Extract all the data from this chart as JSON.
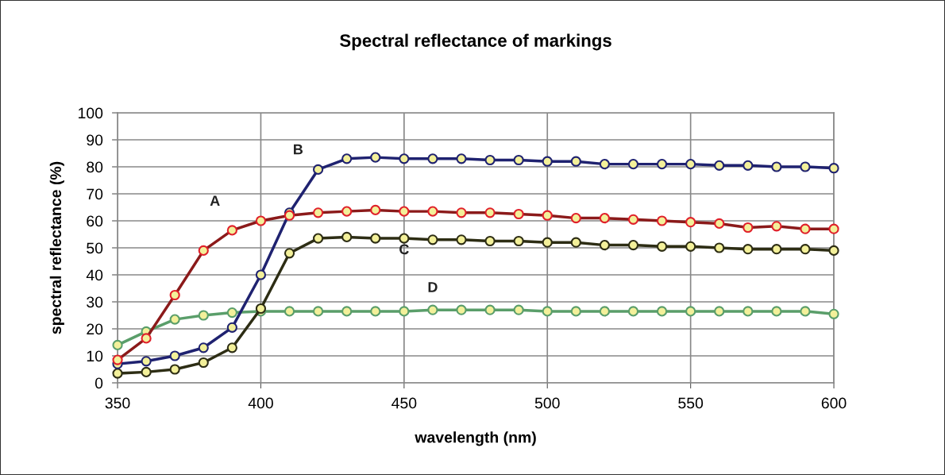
{
  "chart_data": {
    "type": "line",
    "title": "Spectral reflectance of markings",
    "xlabel": "wavelength (nm)",
    "ylabel": "spectral reflectance (%)",
    "x": [
      350,
      360,
      370,
      380,
      390,
      400,
      410,
      420,
      430,
      440,
      450,
      460,
      470,
      480,
      490,
      500,
      510,
      520,
      530,
      540,
      550,
      560,
      570,
      580,
      590,
      600
    ],
    "series": [
      {
        "name": "A",
        "color": "#8b1a1a",
        "values": [
          8.5,
          16.5,
          32.5,
          49,
          56.5,
          60,
          62,
          63,
          63.5,
          64,
          63.5,
          63.5,
          63,
          63,
          62.5,
          62,
          61,
          61,
          60.5,
          60,
          59.5,
          59,
          57.5,
          58,
          57,
          57
        ]
      },
      {
        "name": "B",
        "color": "#1f2270",
        "values": [
          7,
          8,
          10,
          13,
          20.5,
          40,
          63,
          79,
          83,
          83.5,
          83,
          83,
          83,
          82.5,
          82.5,
          82,
          82,
          81,
          81,
          81,
          81,
          80.5,
          80.5,
          80,
          80,
          79.5
        ]
      },
      {
        "name": "C",
        "color": "#2d2d14",
        "values": [
          3.5,
          4,
          5,
          7.5,
          13,
          27.5,
          48,
          53.5,
          54,
          53.5,
          53.5,
          53,
          53,
          52.5,
          52.5,
          52,
          52,
          51,
          51,
          50.5,
          50.5,
          50,
          49.5,
          49.5,
          49.5,
          49
        ]
      },
      {
        "name": "D",
        "color": "#5a9e6a",
        "values": [
          14,
          19,
          23.5,
          25,
          26,
          26.5,
          26.5,
          26.5,
          26.5,
          26.5,
          26.5,
          27,
          27,
          27,
          27,
          26.5,
          26.5,
          26.5,
          26.5,
          26.5,
          26.5,
          26.5,
          26.5,
          26.5,
          26.5,
          25.5
        ]
      }
    ],
    "xlim": [
      350,
      600
    ],
    "xticks": [
      350,
      400,
      450,
      500,
      550,
      600
    ],
    "ylim": [
      0,
      100
    ],
    "yticks": [
      0,
      10,
      20,
      30,
      40,
      50,
      60,
      70,
      80,
      90,
      100
    ],
    "grid": true,
    "marker": "circle",
    "line_style": "solid",
    "legend": false
  }
}
